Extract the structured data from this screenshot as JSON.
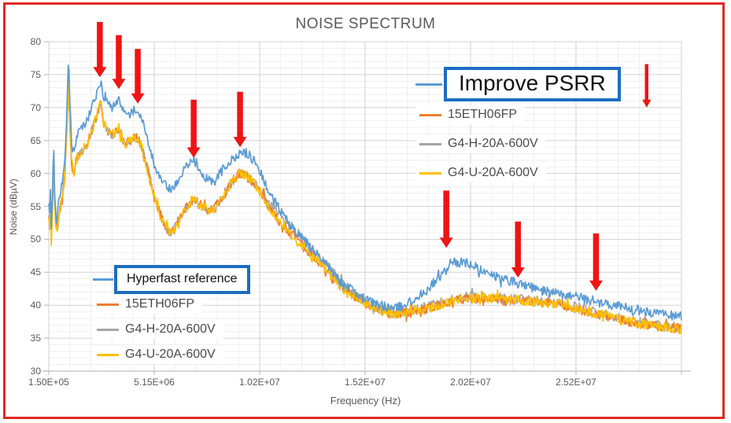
{
  "title": "NOISE SPECTRUM",
  "frame": {
    "border_color": "#DD2B21"
  },
  "colors": {
    "blue": "#5B9BD5",
    "orange": "#ED7D31",
    "gray": "#A5A5A5",
    "yellow": "#FFC000",
    "arrow_red": "#F01414",
    "callout_border_blue": "#1C6DC1",
    "grid_minor": "#efefef",
    "grid_major": "#d2d2d2",
    "axis_line": "#bfbfbf",
    "text_gray": "#595959"
  },
  "axes": {
    "x": {
      "label": "Frequency (Hz)",
      "tick_labels": [
        "1.50E+05",
        "5.15E+06",
        "1.02E+07",
        "1.52E+07",
        "2.02E+07",
        "2.52E+07"
      ],
      "min_mhz": 0.15,
      "max_mhz": 30.15,
      "major_step_mhz": 5,
      "minor_step_mhz": 1
    },
    "y": {
      "label": "Noise (dBµV)",
      "tick_labels": [
        "30",
        "35",
        "40",
        "45",
        "50",
        "55",
        "60",
        "65",
        "70",
        "75",
        "80"
      ],
      "min": 30,
      "max": 80,
      "major_step": 5,
      "minor_step": 1
    }
  },
  "legend_top": {
    "items": [
      {
        "label": "Improve PSRR",
        "color": "#5B9BD5",
        "boxed": true
      },
      {
        "label": "15ETH06FP",
        "color": "#ED7D31",
        "boxed": false
      },
      {
        "label": "G4-H-20A-600V",
        "color": "#A5A5A5",
        "boxed": false
      },
      {
        "label": "G4-U-20A-600V",
        "color": "#FFC000",
        "boxed": false
      }
    ]
  },
  "legend_bottom": {
    "items": [
      {
        "label": "Hyperfast reference",
        "color": "#5B9BD5",
        "boxed": true
      },
      {
        "label": "15ETH06FP",
        "color": "#ED7D31",
        "boxed": false
      },
      {
        "label": "G4-H-20A-600V",
        "color": "#A5A5A5",
        "boxed": false
      },
      {
        "label": "G4-U-20A-600V",
        "color": "#FFC000",
        "boxed": false
      }
    ]
  },
  "annotations": {
    "arrow_color": "#F01414",
    "arrows": [
      {
        "mhz": 2.57,
        "tip_db": 74.6,
        "top_db": 83.0,
        "weight": "bold"
      },
      {
        "mhz": 3.47,
        "tip_db": 72.8,
        "top_db": 81.0,
        "weight": "bold"
      },
      {
        "mhz": 4.37,
        "tip_db": 70.6,
        "top_db": 78.9,
        "weight": "bold"
      },
      {
        "mhz": 7.02,
        "tip_db": 62.4,
        "top_db": 71.2,
        "weight": "bold"
      },
      {
        "mhz": 9.22,
        "tip_db": 64.0,
        "top_db": 72.4,
        "weight": "bold"
      },
      {
        "mhz": 19.0,
        "tip_db": 48.7,
        "top_db": 57.4,
        "weight": "bold"
      },
      {
        "mhz": 22.4,
        "tip_db": 44.2,
        "top_db": 52.7,
        "weight": "bold"
      },
      {
        "mhz": 26.1,
        "tip_db": 42.2,
        "top_db": 50.9,
        "weight": "bold"
      },
      {
        "mhz": 28.5,
        "tip_db": 70.0,
        "top_db": 76.6,
        "weight": "thin"
      }
    ]
  },
  "chart_data": {
    "type": "line",
    "title": "NOISE SPECTRUM",
    "xlabel": "Frequency (Hz)",
    "ylabel": "Noise (dBµV)",
    "x_unit": "MHz",
    "xlim_mhz": [
      0.15,
      30.15
    ],
    "ylim": [
      30,
      80
    ],
    "grid": true,
    "x_mhz": [
      0.15,
      0.18,
      0.22,
      0.26,
      0.32,
      0.38,
      0.44,
      0.52,
      0.62,
      0.72,
      0.82,
      0.92,
      1.0,
      1.08,
      1.16,
      1.24,
      1.35,
      1.5,
      1.7,
      1.9,
      2.1,
      2.35,
      2.6,
      2.75,
      2.95,
      3.15,
      3.35,
      3.47,
      3.6,
      3.75,
      3.95,
      4.15,
      4.35,
      4.55,
      4.75,
      5.0,
      5.3,
      5.6,
      5.9,
      6.2,
      6.6,
      7.0,
      7.35,
      7.7,
      8.0,
      8.4,
      8.8,
      9.2,
      9.6,
      9.9,
      10.3,
      10.8,
      11.3,
      11.9,
      12.5,
      13.2,
      14.0,
      14.8,
      15.6,
      16.4,
      17.2,
      18.0,
      18.8,
      19.4,
      20.0,
      20.7,
      21.4,
      22.2,
      23.2,
      24.2,
      25.2,
      26.2,
      27.2,
      28.2,
      29.2,
      30.15
    ],
    "series": [
      {
        "name": "Hyperfast reference (Improve PSRR)",
        "color": "#5B9BD5",
        "db": [
          56,
          52,
          60,
          51,
          57,
          64.3,
          56,
          52.5,
          56,
          57,
          60,
          63,
          69,
          78,
          70,
          64,
          63.5,
          66,
          67,
          67.5,
          69,
          71.5,
          74,
          71.5,
          70.5,
          70,
          70.8,
          71.8,
          70,
          68.8,
          69,
          69.5,
          69.8,
          68.5,
          66,
          63,
          60,
          58.2,
          57.5,
          58.5,
          61,
          62.3,
          60.5,
          59,
          58.8,
          60.5,
          62,
          63.2,
          63,
          62,
          59.5,
          56,
          53.5,
          51,
          49,
          46.5,
          43.5,
          41.5,
          40.2,
          39.5,
          40.3,
          42,
          44.8,
          46.6,
          46.4,
          45.4,
          44.4,
          43.5,
          42.5,
          41.8,
          41.2,
          40.5,
          39.8,
          39.2,
          38.6,
          38.2
        ]
      },
      {
        "name": "15ETH06FP",
        "color": "#ED7D31",
        "db": [
          54,
          50,
          58,
          49,
          55,
          62,
          54,
          51,
          54,
          55,
          57.5,
          60,
          66,
          75.5,
          66,
          61,
          60.5,
          62.5,
          63.5,
          64,
          65.5,
          68,
          71,
          67.5,
          66.5,
          65.8,
          66.2,
          67,
          65.5,
          64.5,
          64.8,
          65.2,
          65.5,
          64,
          61.5,
          58.5,
          55,
          52.5,
          50.8,
          52,
          54.5,
          56.2,
          55.2,
          54.5,
          54.8,
          56.5,
          58.5,
          60,
          59.5,
          58.5,
          56.5,
          54,
          52,
          50,
          48,
          45.8,
          43,
          41,
          39.6,
          38.7,
          38.8,
          39.4,
          40.2,
          40.8,
          41,
          41.1,
          41,
          40.8,
          40.5,
          40.2,
          39.5,
          38.6,
          37.8,
          37.2,
          36.7,
          36.4
        ]
      },
      {
        "name": "G4-H-20A-600V",
        "color": "#A5A5A5",
        "db": [
          54,
          50,
          58,
          49,
          55,
          62,
          54,
          51,
          54,
          55,
          57.5,
          60,
          66,
          75.5,
          66,
          61,
          60.5,
          62.5,
          63.5,
          64,
          65.5,
          68,
          71,
          67.5,
          66.5,
          65.8,
          66.2,
          67,
          65.5,
          64.5,
          64.8,
          65.2,
          65.5,
          64,
          61.5,
          58.5,
          55,
          52.5,
          50.8,
          52,
          54.5,
          56.2,
          55.2,
          54.5,
          54.8,
          56.5,
          58.5,
          60,
          59.5,
          58.5,
          57,
          54.8,
          52.8,
          50.8,
          48.8,
          46.5,
          43.5,
          41.2,
          39.8,
          38.8,
          39,
          39.6,
          40.4,
          41,
          41.2,
          41.3,
          41.2,
          41,
          40.7,
          40.4,
          39.7,
          38.8,
          38,
          37.4,
          36.9,
          36.6
        ]
      },
      {
        "name": "G4-U-20A-600V",
        "color": "#FFC000",
        "db": [
          54,
          50,
          58,
          49,
          55,
          62,
          54,
          51,
          54,
          55,
          57.5,
          60,
          66,
          75.5,
          66,
          61,
          60.5,
          62.5,
          63.5,
          64,
          65.5,
          68,
          71,
          67.5,
          66.5,
          65.8,
          66.2,
          67,
          65.5,
          64.5,
          64.8,
          65.2,
          65.5,
          64,
          61.5,
          58.5,
          55,
          52.5,
          50.8,
          52,
          54.5,
          56.2,
          55.2,
          54.5,
          54.8,
          56.5,
          58.5,
          60,
          59.5,
          58.5,
          56.5,
          54,
          52,
          50,
          48,
          45.8,
          43,
          41,
          39.6,
          38.7,
          38.8,
          39.4,
          40.2,
          40.8,
          41,
          41.1,
          41,
          40.8,
          40.5,
          40.2,
          39.5,
          38.6,
          37.8,
          37.2,
          36.7,
          36.4
        ]
      }
    ]
  }
}
